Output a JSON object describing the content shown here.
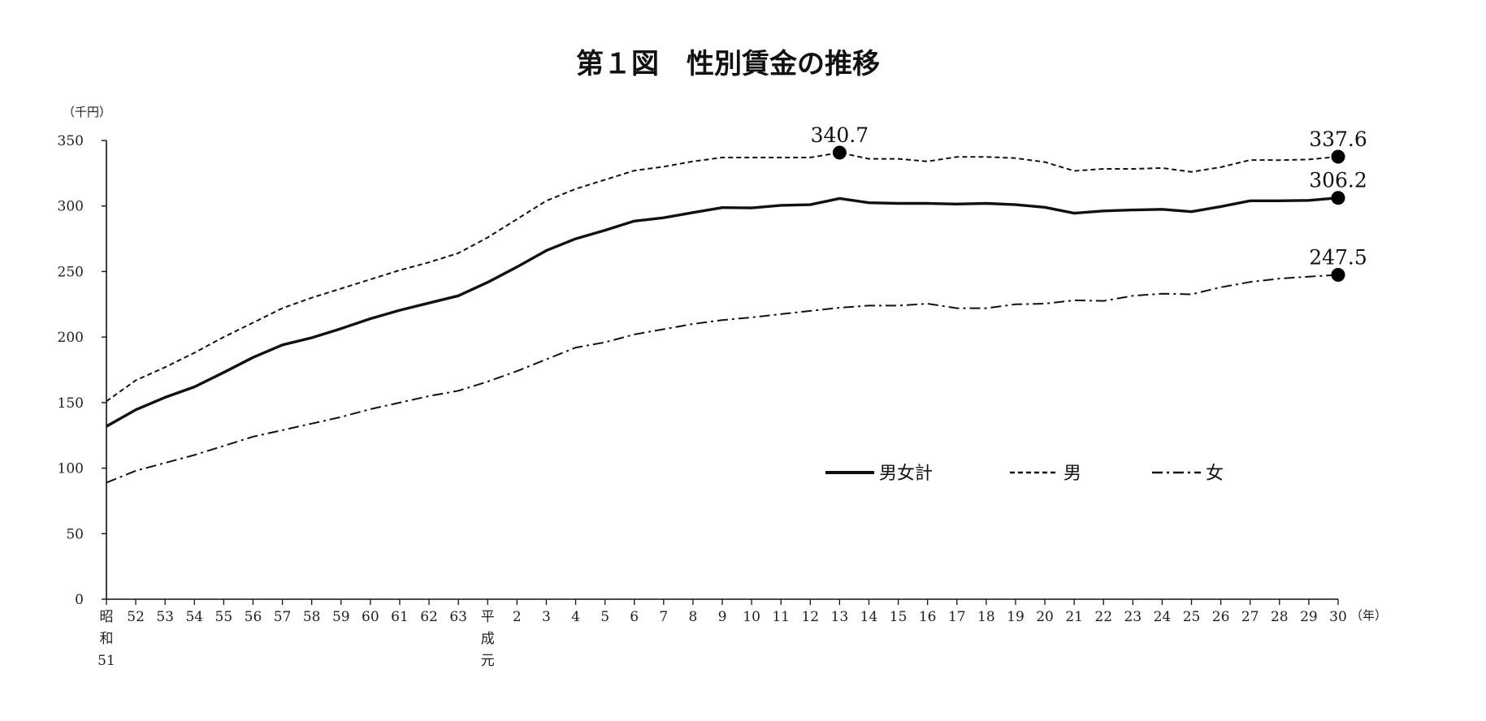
{
  "chart_data": {
    "type": "line",
    "title": "第１図　性別賃金の推移",
    "y_unit": "（千円）",
    "x_unit": "（年）",
    "ylim": [
      0,
      350
    ],
    "yticks": [
      0,
      50,
      100,
      150,
      200,
      250,
      300,
      350
    ],
    "grid": false,
    "legend_position": "center-right",
    "categories": [
      "昭和51",
      "52",
      "53",
      "54",
      "55",
      "56",
      "57",
      "58",
      "59",
      "60",
      "61",
      "62",
      "63",
      "平成元",
      "2",
      "3",
      "4",
      "5",
      "6",
      "7",
      "8",
      "9",
      "10",
      "11",
      "12",
      "13",
      "14",
      "15",
      "16",
      "17",
      "18",
      "19",
      "20",
      "21",
      "22",
      "23",
      "24",
      "25",
      "26",
      "27",
      "28",
      "29",
      "30"
    ],
    "category_labels": [
      [
        "昭",
        "和",
        "51"
      ],
      [
        "52"
      ],
      [
        "53"
      ],
      [
        "54"
      ],
      [
        "55"
      ],
      [
        "56"
      ],
      [
        "57"
      ],
      [
        "58"
      ],
      [
        "59"
      ],
      [
        "60"
      ],
      [
        "61"
      ],
      [
        "62"
      ],
      [
        "63"
      ],
      [
        "平",
        "成",
        "元"
      ],
      [
        "2"
      ],
      [
        "3"
      ],
      [
        "4"
      ],
      [
        "5"
      ],
      [
        "6"
      ],
      [
        "7"
      ],
      [
        "8"
      ],
      [
        "9"
      ],
      [
        "10"
      ],
      [
        "11"
      ],
      [
        "12"
      ],
      [
        "13"
      ],
      [
        "14"
      ],
      [
        "15"
      ],
      [
        "16"
      ],
      [
        "17"
      ],
      [
        "18"
      ],
      [
        "19"
      ],
      [
        "20"
      ],
      [
        "21"
      ],
      [
        "22"
      ],
      [
        "23"
      ],
      [
        "24"
      ],
      [
        "25"
      ],
      [
        "26"
      ],
      [
        "27"
      ],
      [
        "28"
      ],
      [
        "29"
      ],
      [
        "30"
      ]
    ],
    "series": [
      {
        "name": "男女計",
        "style": "solid",
        "values": [
          131.9,
          144.5,
          154.0,
          162.0,
          173.0,
          184.5,
          194.0,
          199.5,
          206.5,
          214.0,
          220.5,
          226.0,
          231.5,
          241.8,
          253.5,
          266.0,
          275.0,
          281.5,
          288.5,
          291.0,
          295.0,
          298.8,
          298.5,
          300.5,
          301.0,
          305.8,
          302.5,
          302.0,
          302.0,
          301.5,
          302.0,
          301.0,
          299.0,
          294.5,
          296.2,
          297.0,
          297.5,
          295.7,
          299.6,
          304.0,
          304.0,
          304.3,
          306.2
        ]
      },
      {
        "name": "男",
        "style": "dashed",
        "values": [
          151.0,
          167.0,
          177.0,
          188.0,
          200.0,
          211.0,
          222.0,
          230.0,
          237.0,
          244.0,
          251.0,
          257.0,
          264.0,
          276.0,
          290.0,
          304.0,
          313.0,
          320.0,
          327.0,
          330.0,
          334.0,
          337.0,
          337.0,
          337.0,
          337.0,
          340.7,
          336.0,
          336.0,
          334.0,
          337.5,
          337.5,
          336.5,
          333.5,
          326.8,
          328.3,
          328.3,
          329.0,
          326.0,
          329.6,
          335.1,
          335.0,
          335.5,
          337.6
        ]
      },
      {
        "name": "女",
        "style": "dash-dot",
        "values": [
          88.9,
          98.0,
          104.0,
          110.0,
          117.0,
          124.0,
          129.0,
          134.0,
          139.0,
          145.0,
          150.0,
          155.0,
          159.0,
          166.0,
          174.0,
          183.0,
          192.0,
          196.0,
          202.0,
          206.0,
          210.0,
          213.0,
          215.0,
          217.5,
          220.0,
          222.4,
          224.0,
          224.0,
          225.5,
          222.0,
          222.0,
          225.0,
          225.5,
          228.0,
          227.6,
          231.5,
          233.1,
          232.6,
          238.0,
          242.0,
          244.6,
          246.1,
          247.5
        ]
      }
    ],
    "annotations": [
      {
        "series": "男",
        "category": "13",
        "value": 340.7,
        "text": "340.7"
      },
      {
        "series": "男",
        "category": "30",
        "value": 337.6,
        "text": "337.6"
      },
      {
        "series": "男女計",
        "category": "30",
        "value": 306.2,
        "text": "306.2"
      },
      {
        "series": "女",
        "category": "30",
        "value": 247.5,
        "text": "247.5"
      }
    ]
  }
}
